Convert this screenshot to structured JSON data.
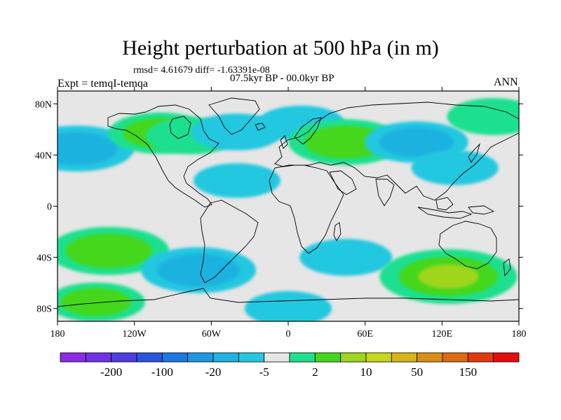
{
  "title": "Height perturbation at 500 hPa (in m)",
  "stats_line": "rmsd= 4.61679 diff= -1.63391e-08",
  "period": "07.5kyr BP - 00.0kyr BP",
  "experiment": "Expt = temqI-temqa",
  "season": "ANN",
  "lat_ticks": [
    "80N",
    "40N",
    "0",
    "40S",
    "80S"
  ],
  "lon_ticks": [
    "180",
    "120W",
    "60W",
    "0",
    "60E",
    "120E",
    "180"
  ],
  "colorbar": {
    "colors": [
      "#8c2be6",
      "#6f33e6",
      "#4f3fdc",
      "#2a55dc",
      "#1b78e0",
      "#1e96e0",
      "#1fb2e0",
      "#23c8e0",
      "#e6e6e6",
      "#1fe08f",
      "#45d71a",
      "#9fd61e",
      "#c9d71c",
      "#d6b41a",
      "#d98e16",
      "#dc6a12",
      "#e23a0e",
      "#e60d0d"
    ],
    "labels": [
      "-200",
      "-100",
      "-20",
      "-5",
      "2",
      "10",
      "50",
      "150"
    ]
  },
  "chart_data": {
    "type": "heatmap",
    "title": "Height perturbation at 500 hPa (in m)",
    "subtitle": "07.5kyr BP - 00.0kyr BP",
    "experiment": "Expt = temqI-temqa",
    "season": "ANN",
    "rmsd": 4.61679,
    "diff": -1.63391e-08,
    "x_range": [
      -180,
      180
    ],
    "y_range": [
      -90,
      90
    ],
    "units": "m",
    "colorbar_labels": [
      "-200",
      "-100",
      "-20",
      "-5",
      "2",
      "10",
      "50",
      "150"
    ],
    "features": [
      {
        "lon": -165,
        "lat": 45,
        "value": -8
      },
      {
        "lon": -100,
        "lat": 57,
        "value": 6
      },
      {
        "lon": -75,
        "lat": 55,
        "value": 4
      },
      {
        "lon": -40,
        "lat": 58,
        "value": -4
      },
      {
        "lon": 10,
        "lat": 65,
        "value": -3
      },
      {
        "lon": 45,
        "lat": 50,
        "value": 8
      },
      {
        "lon": 100,
        "lat": 50,
        "value": -6
      },
      {
        "lon": 160,
        "lat": 70,
        "value": 4
      },
      {
        "lon": 130,
        "lat": 30,
        "value": -3
      },
      {
        "lon": -40,
        "lat": 20,
        "value": -3
      },
      {
        "lon": -140,
        "lat": -35,
        "value": 9
      },
      {
        "lon": -70,
        "lat": -50,
        "value": -8
      },
      {
        "lon": 45,
        "lat": -40,
        "value": -4
      },
      {
        "lon": 125,
        "lat": -55,
        "value": 12
      },
      {
        "lon": 0,
        "lat": -80,
        "value": -3
      },
      {
        "lon": -150,
        "lat": -75,
        "value": 5
      }
    ]
  }
}
